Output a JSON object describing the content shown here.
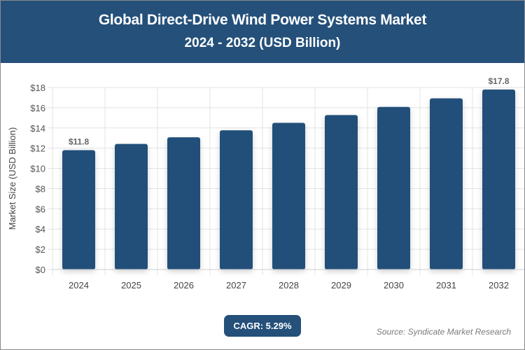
{
  "header": {
    "title": "Global Direct-Drive Wind Power Systems Market",
    "subtitle": "2024 - 2032 (USD Billion)"
  },
  "chart_data": {
    "type": "bar",
    "title": "Global Direct-Drive Wind Power Systems Market",
    "subtitle": "2024 - 2032 (USD Billion)",
    "xlabel": "",
    "ylabel": "Market Size (USD Billion)",
    "categories": [
      "2024",
      "2025",
      "2026",
      "2027",
      "2028",
      "2029",
      "2030",
      "2031",
      "2032"
    ],
    "values": [
      11.8,
      12.42,
      13.08,
      13.77,
      14.5,
      15.27,
      16.08,
      16.93,
      17.8
    ],
    "data_labels": {
      "0": "$11.8",
      "8": "$17.8"
    },
    "ylim": [
      0,
      18
    ],
    "yticks": [
      "$0",
      "$2",
      "$4",
      "$6",
      "$8",
      "$10",
      "$12",
      "$14",
      "$16",
      "$18"
    ],
    "grid": true,
    "bar_color": "#24507a"
  },
  "cagr": "CAGR: 5.29%",
  "source": "Source: Syndicate Market Research"
}
